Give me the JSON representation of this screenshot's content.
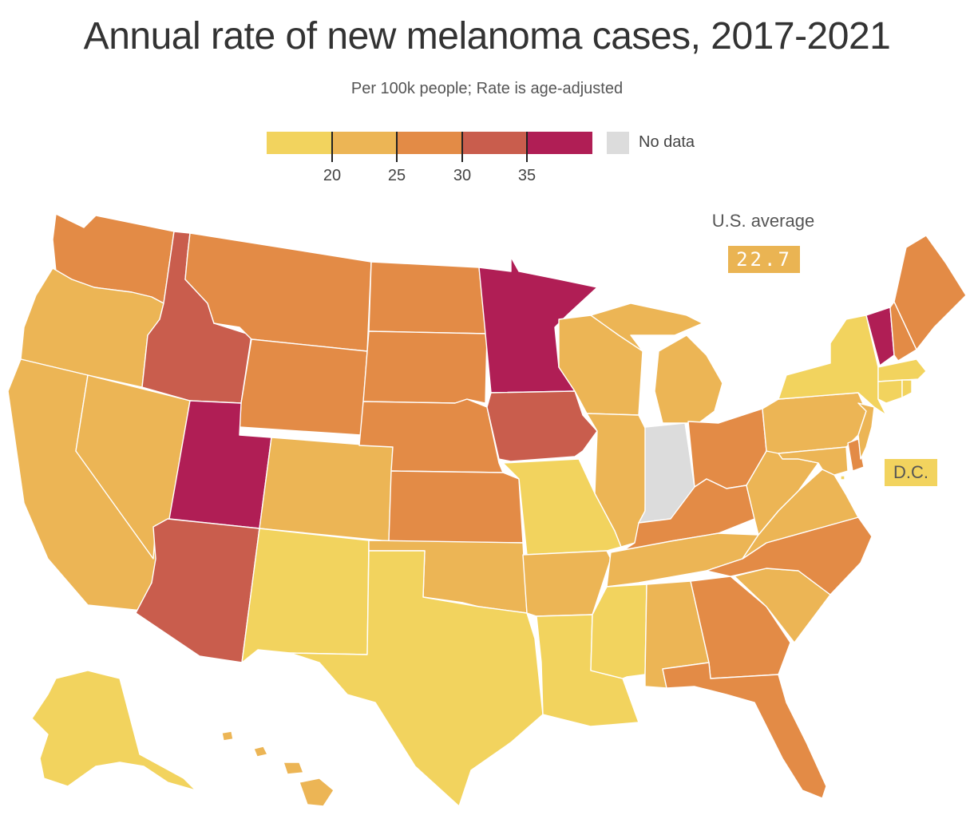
{
  "title": "Annual rate of new melanoma cases, 2017-2021",
  "subtitle": "Per 100k people; Rate is age-adjusted",
  "legend": {
    "bins": [
      {
        "color": "#f2d35e",
        "min": null,
        "max": 20
      },
      {
        "color": "#ecb555",
        "min": 20,
        "max": 25
      },
      {
        "color": "#e38b46",
        "min": 25,
        "max": 30
      },
      {
        "color": "#c95d4d",
        "min": 30,
        "max": 35
      },
      {
        "color": "#b01e55",
        "min": 35,
        "max": null
      }
    ],
    "ticks": [
      "20",
      "25",
      "30",
      "35"
    ],
    "no_data_label": "No data",
    "no_data_color": "#dcdcdc"
  },
  "us_average": {
    "label": "U.S. average",
    "value": "22.7",
    "color": "#eab453"
  },
  "dc": {
    "label": "D.C.",
    "color": "#f2d35e"
  },
  "chart_data": {
    "type": "choropleth",
    "title": "Annual rate of new melanoma cases, 2017-2021",
    "subtitle": "Per 100k people; Rate is age-adjusted",
    "legend_bins": [
      "<20",
      "20–25",
      "25–30",
      "30–35",
      "35+",
      "No data"
    ],
    "states": {
      "WA": "25–30",
      "OR": "20–25",
      "CA": "20–25",
      "NV": "20–25",
      "ID": "30–35",
      "MT": "25–30",
      "WY": "25–30",
      "UT": "35+",
      "AZ": "30–35",
      "NM": "<20",
      "CO": "20–25",
      "ND": "25–30",
      "SD": "25–30",
      "NE": "25–30",
      "KS": "25–30",
      "OK": "20–25",
      "TX": "<20",
      "MN": "35+",
      "IA": "30–35",
      "MO": "<20",
      "AR": "20–25",
      "LA": "<20",
      "WI": "20–25",
      "IL": "20–25",
      "IN": "No data",
      "MI": "20–25",
      "OH": "25–30",
      "KY": "25–30",
      "TN": "20–25",
      "MS": "<20",
      "AL": "20–25",
      "GA": "25–30",
      "FL": "25–30",
      "SC": "20–25",
      "NC": "25–30",
      "VA": "20–25",
      "WV": "20–25",
      "PA": "20–25",
      "NY": "<20",
      "VT": "35+",
      "NH": "25–30",
      "ME": "25–30",
      "MA": "<20",
      "CT": "<20",
      "RI": "<20",
      "NJ": "20–25",
      "DE": "25–30",
      "MD": "20–25",
      "DC": "<20",
      "AK": "<20",
      "HI": "20–25"
    },
    "us_average": 22.7
  }
}
